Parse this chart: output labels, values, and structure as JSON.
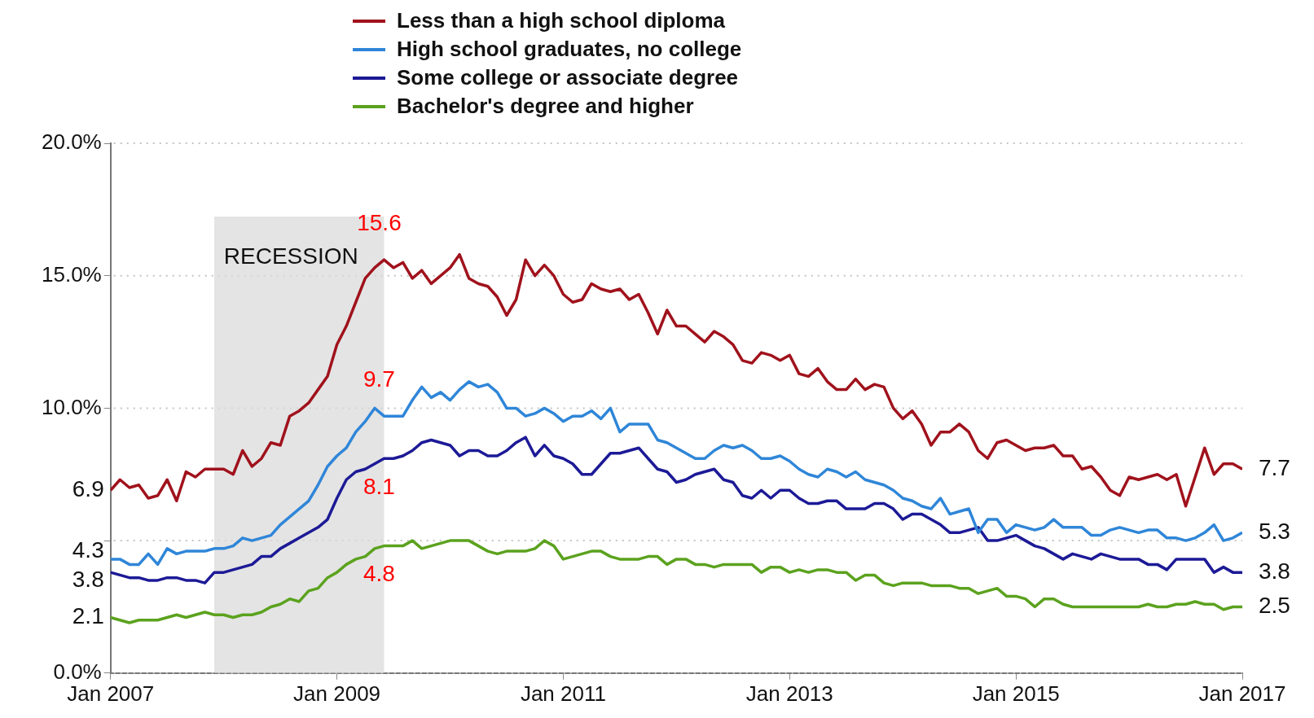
{
  "chart_data": {
    "type": "line",
    "x": [
      "2007-01",
      "2007-02",
      "2007-03",
      "2007-04",
      "2007-05",
      "2007-06",
      "2007-07",
      "2007-08",
      "2007-09",
      "2007-10",
      "2007-11",
      "2007-12",
      "2008-01",
      "2008-02",
      "2008-03",
      "2008-04",
      "2008-05",
      "2008-06",
      "2008-07",
      "2008-08",
      "2008-09",
      "2008-10",
      "2008-11",
      "2008-12",
      "2009-01",
      "2009-02",
      "2009-03",
      "2009-04",
      "2009-05",
      "2009-06",
      "2009-07",
      "2009-08",
      "2009-09",
      "2009-10",
      "2009-11",
      "2009-12",
      "2010-01",
      "2010-02",
      "2010-03",
      "2010-04",
      "2010-05",
      "2010-06",
      "2010-07",
      "2010-08",
      "2010-09",
      "2010-10",
      "2010-11",
      "2010-12",
      "2011-01",
      "2011-02",
      "2011-03",
      "2011-04",
      "2011-05",
      "2011-06",
      "2011-07",
      "2011-08",
      "2011-09",
      "2011-10",
      "2011-11",
      "2011-12",
      "2012-01",
      "2012-02",
      "2012-03",
      "2012-04",
      "2012-05",
      "2012-06",
      "2012-07",
      "2012-08",
      "2012-09",
      "2012-10",
      "2012-11",
      "2012-12",
      "2013-01",
      "2013-02",
      "2013-03",
      "2013-04",
      "2013-05",
      "2013-06",
      "2013-07",
      "2013-08",
      "2013-09",
      "2013-10",
      "2013-11",
      "2013-12",
      "2014-01",
      "2014-02",
      "2014-03",
      "2014-04",
      "2014-05",
      "2014-06",
      "2014-07",
      "2014-08",
      "2014-09",
      "2014-10",
      "2014-11",
      "2014-12",
      "2015-01",
      "2015-02",
      "2015-03",
      "2015-04",
      "2015-05",
      "2015-06",
      "2015-07",
      "2015-08",
      "2015-09",
      "2015-10",
      "2015-11",
      "2015-12",
      "2016-01",
      "2016-02",
      "2016-03",
      "2016-04",
      "2016-05",
      "2016-06",
      "2016-07",
      "2016-08",
      "2016-09",
      "2016-10",
      "2016-11",
      "2016-12",
      "2017-01"
    ],
    "series": [
      {
        "name": "Less than a high school diploma",
        "color": "#a0121c",
        "value_labels": [
          "6.9",
          null,
          null,
          null,
          null,
          null,
          null,
          null,
          null,
          null,
          null,
          null,
          null,
          null,
          null,
          null,
          null,
          null,
          null,
          null,
          null,
          null,
          null,
          null,
          null,
          null,
          null,
          null,
          null,
          "15.6",
          null,
          null,
          null,
          null,
          null,
          null,
          null,
          null,
          null,
          null,
          null,
          null,
          null,
          null,
          null,
          null,
          null,
          null,
          null,
          null,
          null,
          null,
          null,
          null,
          null,
          null,
          null,
          null,
          null,
          null,
          null,
          null,
          null,
          null,
          null,
          null,
          null,
          null,
          null,
          null,
          null,
          null,
          null,
          null,
          null,
          null,
          null,
          null,
          null,
          null,
          null,
          null,
          null,
          null,
          null,
          null,
          null,
          null,
          null,
          null,
          null,
          null,
          null,
          null,
          null,
          null,
          null,
          null,
          null,
          null,
          null,
          null,
          null,
          null,
          null,
          null,
          null,
          null,
          null,
          null,
          null,
          null,
          null,
          null,
          null,
          null,
          null,
          null,
          null,
          null,
          "7.7"
        ],
        "values": [
          6.9,
          7.3,
          7.0,
          7.1,
          6.6,
          6.7,
          7.3,
          6.5,
          7.6,
          7.4,
          7.7,
          7.7,
          7.7,
          7.5,
          8.4,
          7.8,
          8.1,
          8.7,
          8.6,
          9.7,
          9.9,
          10.2,
          10.7,
          11.2,
          12.4,
          13.1,
          14.0,
          14.9,
          15.3,
          15.6,
          15.3,
          15.5,
          14.9,
          15.2,
          14.7,
          15.0,
          15.3,
          15.8,
          14.9,
          14.7,
          14.6,
          14.2,
          13.5,
          14.1,
          15.6,
          15.0,
          15.4,
          15.0,
          14.3,
          14.0,
          14.1,
          14.7,
          14.5,
          14.4,
          14.5,
          14.1,
          14.3,
          13.6,
          12.8,
          13.7,
          13.1,
          13.1,
          12.8,
          12.5,
          12.9,
          12.7,
          12.4,
          11.8,
          11.7,
          12.1,
          12.0,
          11.8,
          12.0,
          11.3,
          11.2,
          11.5,
          11.0,
          10.7,
          10.7,
          11.1,
          10.7,
          10.9,
          10.8,
          10.0,
          9.6,
          9.9,
          9.4,
          8.6,
          9.1,
          9.1,
          9.4,
          9.1,
          8.4,
          8.1,
          8.7,
          8.8,
          8.6,
          8.4,
          8.5,
          8.5,
          8.6,
          8.2,
          8.2,
          7.7,
          7.8,
          7.4,
          6.9,
          6.7,
          7.4,
          7.3,
          7.4,
          7.5,
          7.3,
          7.5,
          6.3,
          7.4,
          8.5,
          7.5,
          7.9,
          7.9,
          7.7
        ]
      },
      {
        "name": "High school graduates, no college",
        "color": "#2f86d8",
        "value_labels": [
          "4.3",
          null,
          null,
          null,
          null,
          null,
          null,
          null,
          null,
          null,
          null,
          null,
          null,
          null,
          null,
          null,
          null,
          null,
          null,
          null,
          null,
          null,
          null,
          null,
          null,
          null,
          null,
          null,
          null,
          "9.7",
          null,
          null,
          null,
          null,
          null,
          null,
          null,
          null,
          null,
          null,
          null,
          null,
          null,
          null,
          null,
          null,
          null,
          null,
          null,
          null,
          null,
          null,
          null,
          null,
          null,
          null,
          null,
          null,
          null,
          null,
          null,
          null,
          null,
          null,
          null,
          null,
          null,
          null,
          null,
          null,
          null,
          null,
          null,
          null,
          null,
          null,
          null,
          null,
          null,
          null,
          null,
          null,
          null,
          null,
          null,
          null,
          null,
          null,
          null,
          null,
          null,
          null,
          null,
          null,
          null,
          null,
          null,
          null,
          null,
          null,
          null,
          null,
          null,
          null,
          null,
          null,
          null,
          null,
          null,
          null,
          null,
          null,
          null,
          null,
          null,
          null,
          null,
          null,
          null,
          null,
          "5.3"
        ],
        "values": [
          4.3,
          4.3,
          4.1,
          4.1,
          4.5,
          4.1,
          4.7,
          4.5,
          4.6,
          4.6,
          4.6,
          4.7,
          4.7,
          4.8,
          5.1,
          5.0,
          5.1,
          5.2,
          5.6,
          5.9,
          6.2,
          6.5,
          7.1,
          7.8,
          8.2,
          8.5,
          9.1,
          9.5,
          10.0,
          9.7,
          9.7,
          9.7,
          10.3,
          10.8,
          10.4,
          10.6,
          10.3,
          10.7,
          11.0,
          10.8,
          10.9,
          10.6,
          10.0,
          10.0,
          9.7,
          9.8,
          10.0,
          9.8,
          9.5,
          9.7,
          9.7,
          9.9,
          9.6,
          10.0,
          9.1,
          9.4,
          9.4,
          9.4,
          8.8,
          8.7,
          8.5,
          8.3,
          8.1,
          8.1,
          8.4,
          8.6,
          8.5,
          8.6,
          8.4,
          8.1,
          8.1,
          8.2,
          8.0,
          7.7,
          7.5,
          7.4,
          7.7,
          7.6,
          7.4,
          7.6,
          7.3,
          7.2,
          7.1,
          6.9,
          6.6,
          6.5,
          6.3,
          6.2,
          6.6,
          6.0,
          6.1,
          6.2,
          5.3,
          5.8,
          5.8,
          5.3,
          5.6,
          5.5,
          5.4,
          5.5,
          5.8,
          5.5,
          5.5,
          5.5,
          5.2,
          5.2,
          5.4,
          5.5,
          5.4,
          5.3,
          5.4,
          5.4,
          5.1,
          5.1,
          5.0,
          5.1,
          5.3,
          5.6,
          5.0,
          5.1,
          5.3
        ]
      },
      {
        "name": "Some college or associate degree",
        "color": "#1c1a96",
        "value_labels": [
          "3.8",
          null,
          null,
          null,
          null,
          null,
          null,
          null,
          null,
          null,
          null,
          null,
          null,
          null,
          null,
          null,
          null,
          null,
          null,
          null,
          null,
          null,
          null,
          null,
          null,
          null,
          null,
          null,
          null,
          "8.1",
          null,
          null,
          null,
          null,
          null,
          null,
          null,
          null,
          null,
          null,
          null,
          null,
          null,
          null,
          null,
          null,
          null,
          null,
          null,
          null,
          null,
          null,
          null,
          null,
          null,
          null,
          null,
          null,
          null,
          null,
          null,
          null,
          null,
          null,
          null,
          null,
          null,
          null,
          null,
          null,
          null,
          null,
          null,
          null,
          null,
          null,
          null,
          null,
          null,
          null,
          null,
          null,
          null,
          null,
          null,
          null,
          null,
          null,
          null,
          null,
          null,
          null,
          null,
          null,
          null,
          null,
          null,
          null,
          null,
          null,
          null,
          null,
          null,
          null,
          null,
          null,
          null,
          null,
          null,
          null,
          null,
          null,
          null,
          null,
          null,
          null,
          null,
          null,
          null,
          null,
          "3.8"
        ],
        "values": [
          3.8,
          3.7,
          3.6,
          3.6,
          3.5,
          3.5,
          3.6,
          3.6,
          3.5,
          3.5,
          3.4,
          3.8,
          3.8,
          3.9,
          4.0,
          4.1,
          4.4,
          4.4,
          4.7,
          4.9,
          5.1,
          5.3,
          5.5,
          5.8,
          6.6,
          7.3,
          7.6,
          7.7,
          7.9,
          8.1,
          8.1,
          8.2,
          8.4,
          8.7,
          8.8,
          8.7,
          8.6,
          8.2,
          8.4,
          8.4,
          8.2,
          8.2,
          8.4,
          8.7,
          8.9,
          8.2,
          8.6,
          8.2,
          8.1,
          7.9,
          7.5,
          7.5,
          7.9,
          8.3,
          8.3,
          8.4,
          8.5,
          8.1,
          7.7,
          7.6,
          7.2,
          7.3,
          7.5,
          7.6,
          7.7,
          7.3,
          7.2,
          6.7,
          6.6,
          6.9,
          6.6,
          6.9,
          6.9,
          6.6,
          6.4,
          6.4,
          6.5,
          6.5,
          6.2,
          6.2,
          6.2,
          6.4,
          6.4,
          6.2,
          5.8,
          6.0,
          6.0,
          5.8,
          5.6,
          5.3,
          5.3,
          5.4,
          5.5,
          5.0,
          5.0,
          5.1,
          5.2,
          5.0,
          4.8,
          4.7,
          4.5,
          4.3,
          4.5,
          4.4,
          4.3,
          4.5,
          4.4,
          4.3,
          4.3,
          4.3,
          4.1,
          4.1,
          3.9,
          4.3,
          4.3,
          4.3,
          4.3,
          3.8,
          4.0,
          3.8,
          3.8
        ]
      },
      {
        "name": "Bachelor's degree and higher",
        "color": "#5ba21e",
        "value_labels": [
          "2.1",
          null,
          null,
          null,
          null,
          null,
          null,
          null,
          null,
          null,
          null,
          null,
          null,
          null,
          null,
          null,
          null,
          null,
          null,
          null,
          null,
          null,
          null,
          null,
          null,
          null,
          null,
          null,
          null,
          "4.8",
          null,
          null,
          null,
          null,
          null,
          null,
          null,
          null,
          null,
          null,
          null,
          null,
          null,
          null,
          null,
          null,
          null,
          null,
          null,
          null,
          null,
          null,
          null,
          null,
          null,
          null,
          null,
          null,
          null,
          null,
          null,
          null,
          null,
          null,
          null,
          null,
          null,
          null,
          null,
          null,
          null,
          null,
          null,
          null,
          null,
          null,
          null,
          null,
          null,
          null,
          null,
          null,
          null,
          null,
          null,
          null,
          null,
          null,
          null,
          null,
          null,
          null,
          null,
          null,
          null,
          null,
          null,
          null,
          null,
          null,
          null,
          null,
          null,
          null,
          null,
          null,
          null,
          null,
          null,
          null,
          null,
          null,
          null,
          null,
          null,
          null,
          null,
          null,
          null,
          null,
          "2.5"
        ],
        "values": [
          2.1,
          2.0,
          1.9,
          2.0,
          2.0,
          2.0,
          2.1,
          2.2,
          2.1,
          2.2,
          2.3,
          2.2,
          2.2,
          2.1,
          2.2,
          2.2,
          2.3,
          2.5,
          2.6,
          2.8,
          2.7,
          3.1,
          3.2,
          3.6,
          3.8,
          4.1,
          4.3,
          4.4,
          4.7,
          4.8,
          4.8,
          4.8,
          5.0,
          4.7,
          4.8,
          4.9,
          5.0,
          5.0,
          5.0,
          4.8,
          4.6,
          4.5,
          4.6,
          4.6,
          4.6,
          4.7,
          5.0,
          4.8,
          4.3,
          4.4,
          4.5,
          4.6,
          4.6,
          4.4,
          4.3,
          4.3,
          4.3,
          4.4,
          4.4,
          4.1,
          4.3,
          4.3,
          4.1,
          4.1,
          4.0,
          4.1,
          4.1,
          4.1,
          4.1,
          3.8,
          4.0,
          4.0,
          3.8,
          3.9,
          3.8,
          3.9,
          3.9,
          3.8,
          3.8,
          3.5,
          3.7,
          3.7,
          3.4,
          3.3,
          3.4,
          3.4,
          3.4,
          3.3,
          3.3,
          3.3,
          3.2,
          3.2,
          3.0,
          3.1,
          3.2,
          2.9,
          2.9,
          2.8,
          2.5,
          2.8,
          2.8,
          2.6,
          2.5,
          2.5,
          2.5,
          2.5,
          2.5,
          2.5,
          2.5,
          2.5,
          2.6,
          2.5,
          2.5,
          2.6,
          2.6,
          2.7,
          2.6,
          2.6,
          2.4,
          2.5,
          2.5
        ]
      }
    ],
    "xlim": [
      "2007-01",
      "2017-01"
    ],
    "xticks": [
      {
        "value": "2007-01",
        "label": "Jan 2007"
      },
      {
        "value": "2009-01",
        "label": "Jan 2009"
      },
      {
        "value": "2011-01",
        "label": "Jan 2011"
      },
      {
        "value": "2013-01",
        "label": "Jan 2013"
      },
      {
        "value": "2015-01",
        "label": "Jan 2015"
      },
      {
        "value": "2017-01",
        "label": "Jan 2017"
      }
    ],
    "ylim": [
      0,
      20
    ],
    "yticks": [
      {
        "value": 0,
        "label": "0.0%"
      },
      {
        "value": 5,
        "label": null
      },
      {
        "value": 10,
        "label": "10.0%"
      },
      {
        "value": 15,
        "label": "15.0%"
      },
      {
        "value": 20,
        "label": "20.0%"
      }
    ],
    "grid": "y",
    "legend": "top",
    "bands": [
      {
        "axis": "x",
        "from": "2007-12",
        "to": "2009-06",
        "label": "RECESSION",
        "color": "#d9d9d9"
      }
    ]
  }
}
